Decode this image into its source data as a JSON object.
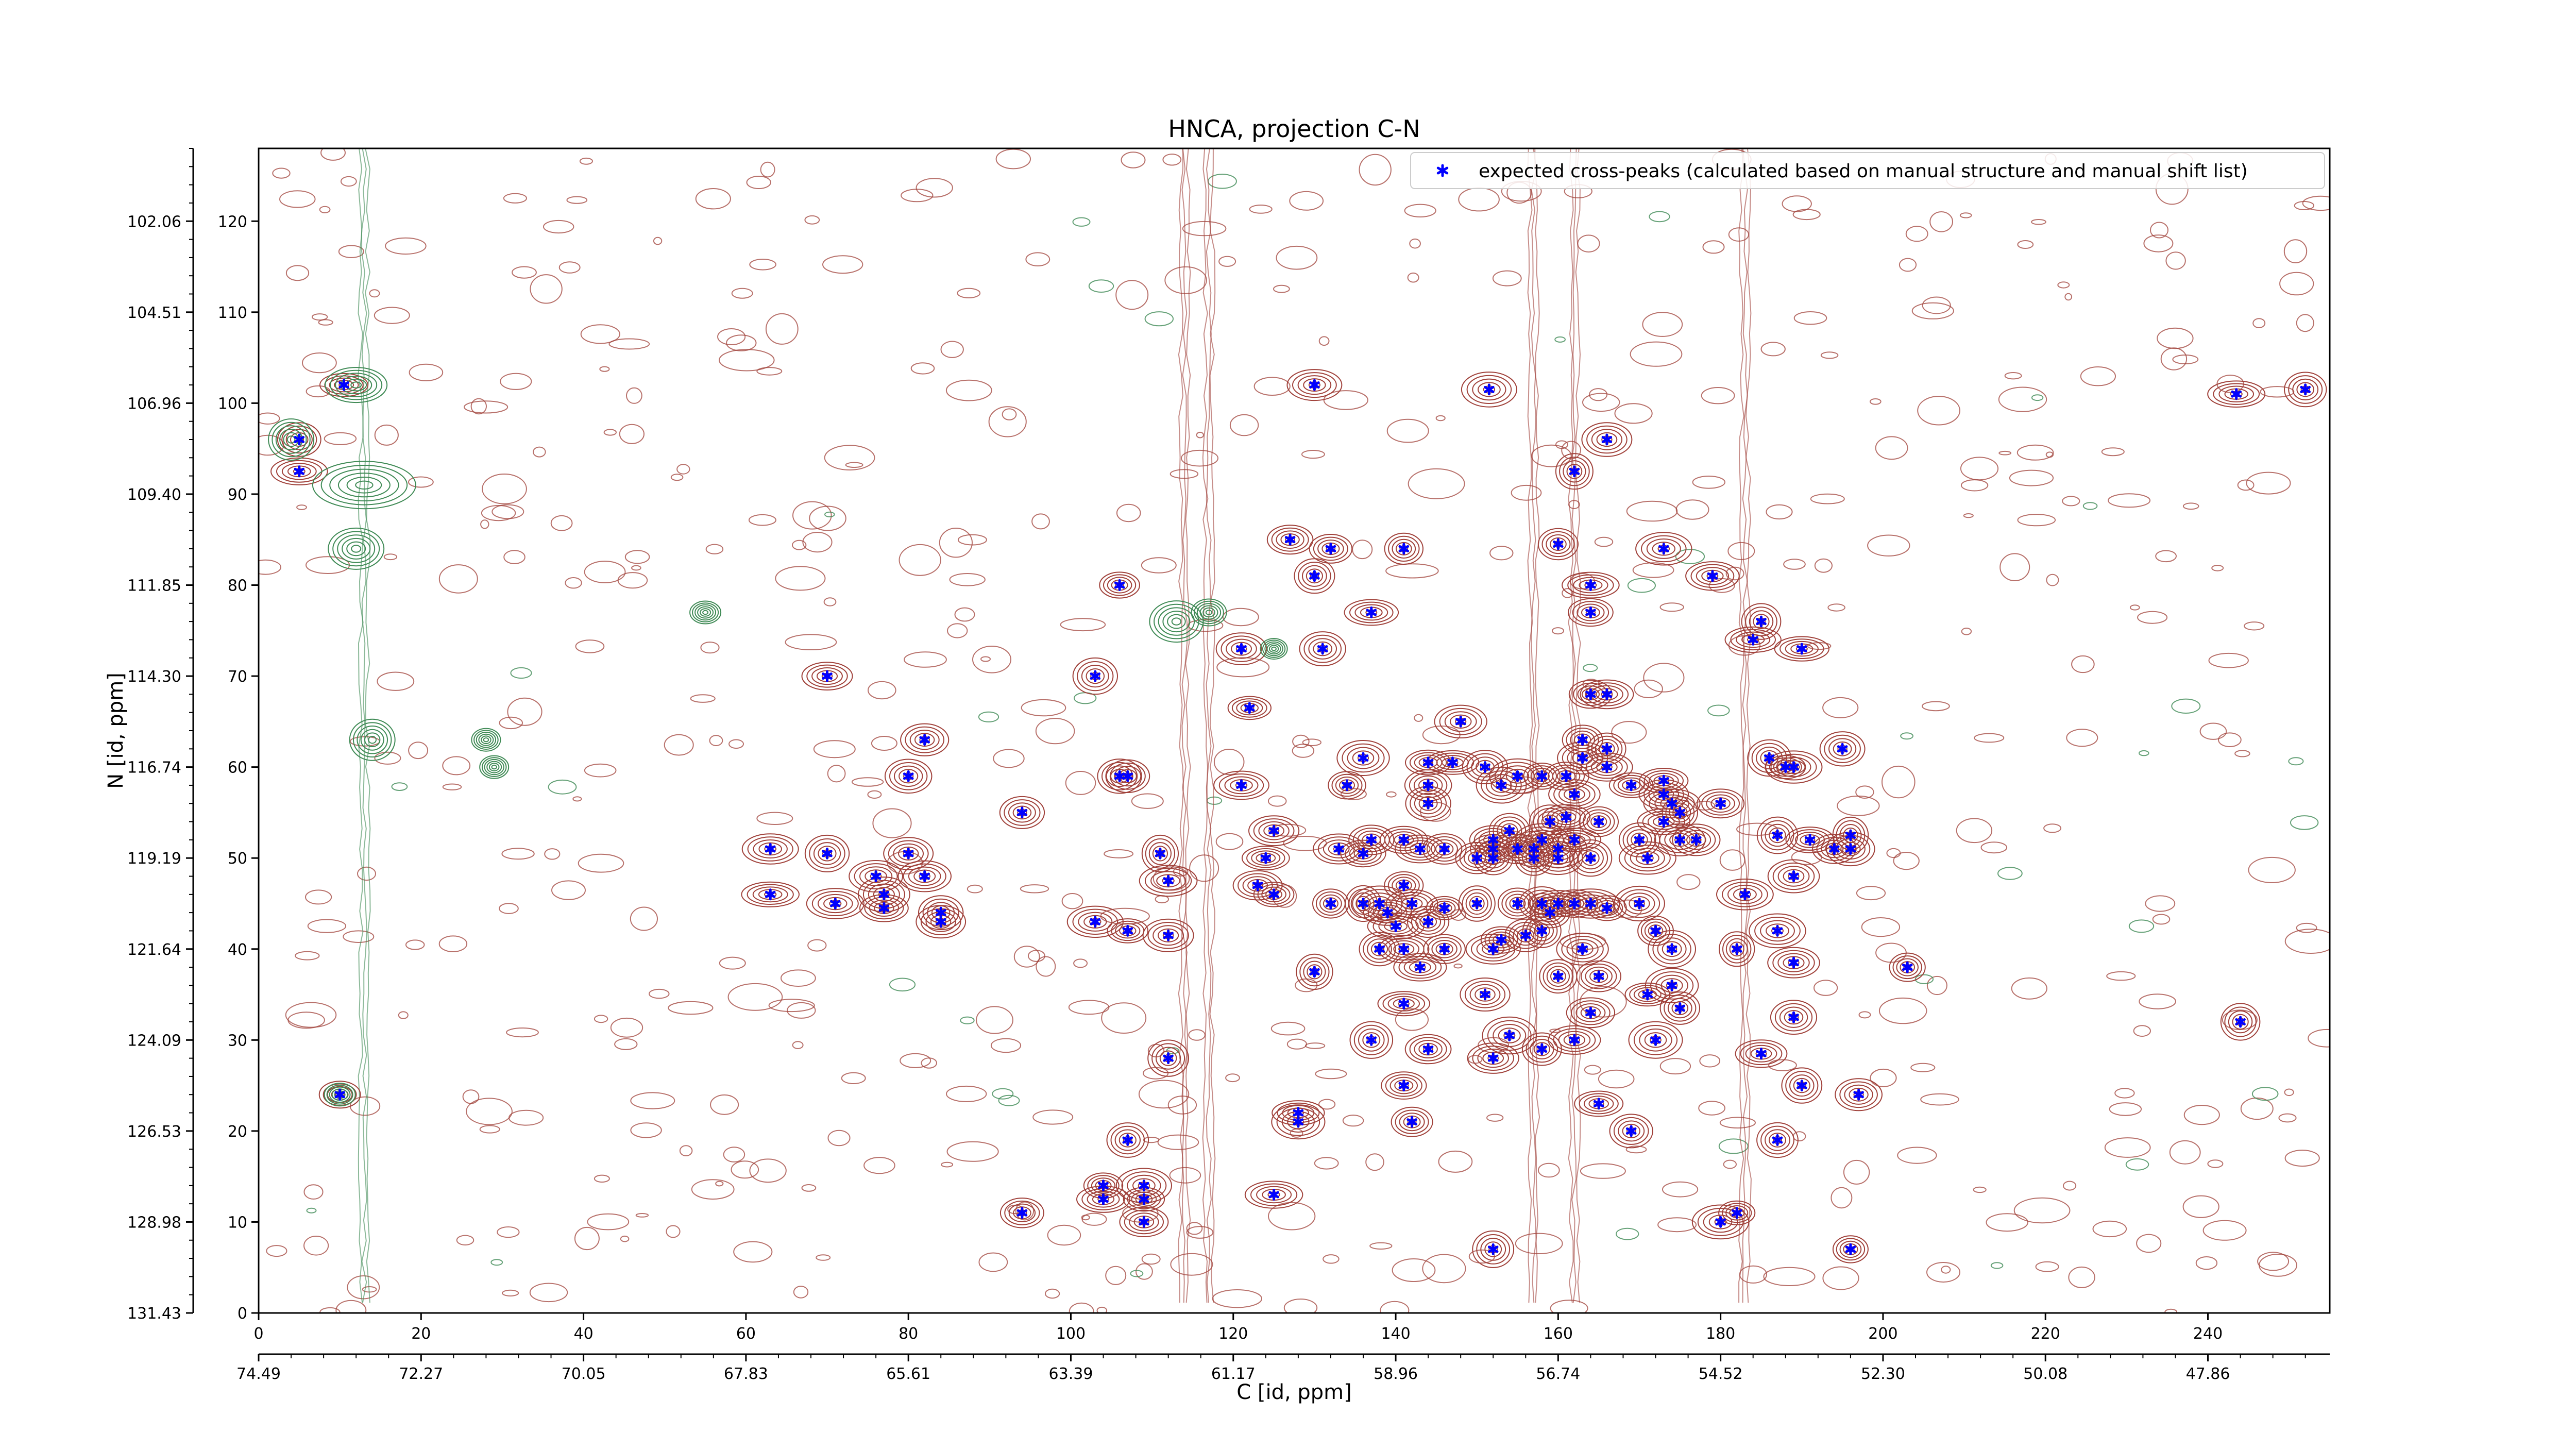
{
  "chart_data": {
    "type": "scatter",
    "title": "HNCA, projection C-N",
    "xlabel": "C [id, ppm]",
    "ylabel": "N [id, ppm]",
    "xlim": [
      0,
      255
    ],
    "ylim": [
      0,
      128
    ],
    "x_ticks": [
      "0",
      "20",
      "40",
      "60",
      "80",
      "100",
      "120",
      "140",
      "160",
      "180",
      "200",
      "220",
      "240"
    ],
    "y_ticks": [
      "0",
      "10",
      "20",
      "30",
      "40",
      "50",
      "60",
      "70",
      "80",
      "90",
      "100",
      "110",
      "120"
    ],
    "x_ppm_ticks": [
      "74.49",
      "72.27",
      "70.05",
      "67.83",
      "65.61",
      "63.39",
      "61.17",
      "58.96",
      "56.74",
      "54.52",
      "52.30",
      "50.08",
      "47.86"
    ],
    "y_ppm_ticks": [
      "131.43",
      "128.98",
      "126.53",
      "124.09",
      "121.64",
      "119.19",
      "116.74",
      "114.30",
      "111.85",
      "109.40",
      "106.96",
      "104.51",
      "102.06"
    ],
    "grid": false,
    "legend": {
      "placement": "top-right",
      "entries": [
        "expected cross-peaks (calculated based on manual structure and manual shift list)"
      ]
    },
    "colors": {
      "marker": "#0000ff",
      "positive_contour": "#a0413a",
      "negative_contour": "#3f8a55"
    },
    "series": [
      {
        "name": "expected cross-peaks (calculated based on manual structure and manual shift list)",
        "points": [
          [
            10.5,
            102
          ],
          [
            5,
            96
          ],
          [
            5,
            92.5
          ],
          [
            10,
            24
          ],
          [
            130,
            102
          ],
          [
            151.5,
            101.5
          ],
          [
            243.5,
            101
          ],
          [
            252,
            101.5
          ],
          [
            166,
            96
          ],
          [
            162,
            92.5
          ],
          [
            127,
            85
          ],
          [
            132,
            84
          ],
          [
            141,
            84
          ],
          [
            160,
            84.5
          ],
          [
            173,
            84
          ],
          [
            106,
            80
          ],
          [
            130,
            81
          ],
          [
            164,
            80
          ],
          [
            179,
            81
          ],
          [
            137,
            77
          ],
          [
            164,
            77
          ],
          [
            185,
            76
          ],
          [
            184,
            74
          ],
          [
            190,
            73
          ],
          [
            121,
            73
          ],
          [
            131,
            73
          ],
          [
            70,
            70
          ],
          [
            103,
            70
          ],
          [
            164,
            68
          ],
          [
            166,
            68
          ],
          [
            122,
            66.5
          ],
          [
            148,
            65
          ],
          [
            82,
            63
          ],
          [
            163,
            63
          ],
          [
            166,
            62
          ],
          [
            195,
            62
          ],
          [
            144,
            60.5
          ],
          [
            147,
            60.5
          ],
          [
            136,
            61
          ],
          [
            151,
            60
          ],
          [
            155,
            59
          ],
          [
            158,
            59
          ],
          [
            161,
            59
          ],
          [
            163,
            61
          ],
          [
            166,
            60
          ],
          [
            186,
            61
          ],
          [
            188,
            60
          ],
          [
            189,
            60
          ],
          [
            80,
            59
          ],
          [
            106,
            59
          ],
          [
            107,
            59
          ],
          [
            169,
            58
          ],
          [
            173,
            58.5
          ],
          [
            121,
            58
          ],
          [
            134,
            58
          ],
          [
            144,
            58
          ],
          [
            153,
            58
          ],
          [
            162,
            57
          ],
          [
            173,
            57
          ],
          [
            174,
            56
          ],
          [
            180,
            56
          ],
          [
            175,
            55
          ],
          [
            94,
            55
          ],
          [
            144,
            56
          ],
          [
            161,
            54.5
          ],
          [
            165,
            54
          ],
          [
            173,
            54
          ],
          [
            159,
            54
          ],
          [
            125,
            53
          ],
          [
            154,
            53
          ],
          [
            137,
            52
          ],
          [
            141,
            52
          ],
          [
            152,
            52
          ],
          [
            158,
            52
          ],
          [
            162,
            52
          ],
          [
            170,
            52
          ],
          [
            175,
            52
          ],
          [
            177,
            52
          ],
          [
            187,
            52.5
          ],
          [
            191,
            52
          ],
          [
            196,
            52.5
          ],
          [
            133,
            51
          ],
          [
            136,
            50.5
          ],
          [
            143,
            51
          ],
          [
            146,
            51
          ],
          [
            152,
            51
          ],
          [
            155,
            51
          ],
          [
            157,
            51
          ],
          [
            160,
            51
          ],
          [
            63,
            51
          ],
          [
            70,
            50.5
          ],
          [
            80,
            50.5
          ],
          [
            111,
            50.5
          ],
          [
            124,
            50
          ],
          [
            150,
            50
          ],
          [
            152,
            50
          ],
          [
            157,
            50
          ],
          [
            160,
            50
          ],
          [
            164,
            50
          ],
          [
            171,
            50
          ],
          [
            194,
            51
          ],
          [
            196,
            51
          ],
          [
            76,
            48
          ],
          [
            82,
            48
          ],
          [
            112,
            47.5
          ],
          [
            141,
            47
          ],
          [
            189,
            48
          ],
          [
            63,
            46
          ],
          [
            123,
            47
          ],
          [
            125,
            46
          ],
          [
            77,
            46
          ],
          [
            71,
            45
          ],
          [
            136,
            45
          ],
          [
            138,
            45
          ],
          [
            142,
            45
          ],
          [
            146,
            44.5
          ],
          [
            150,
            45
          ],
          [
            155,
            45
          ],
          [
            158,
            45
          ],
          [
            160,
            45
          ],
          [
            162,
            45
          ],
          [
            164,
            45
          ],
          [
            166,
            44.5
          ],
          [
            170,
            45
          ],
          [
            183,
            46
          ],
          [
            77,
            44.5
          ],
          [
            84,
            44
          ],
          [
            84,
            43
          ],
          [
            132,
            45
          ],
          [
            139,
            44
          ],
          [
            140,
            42.5
          ],
          [
            144,
            43
          ],
          [
            158,
            42
          ],
          [
            159,
            44
          ],
          [
            103,
            43
          ],
          [
            107,
            42
          ],
          [
            112,
            41.5
          ],
          [
            153,
            41
          ],
          [
            156,
            41.5
          ],
          [
            172,
            42
          ],
          [
            187,
            42
          ],
          [
            138,
            40
          ],
          [
            141,
            40
          ],
          [
            146,
            40
          ],
          [
            152,
            40
          ],
          [
            163,
            40
          ],
          [
            174,
            40
          ],
          [
            182,
            40
          ],
          [
            189,
            38.5
          ],
          [
            203,
            38
          ],
          [
            130,
            37.5
          ],
          [
            143,
            38
          ],
          [
            160,
            37
          ],
          [
            165,
            37
          ],
          [
            174,
            36
          ],
          [
            151,
            35
          ],
          [
            171,
            35
          ],
          [
            141,
            34
          ],
          [
            175,
            33.5
          ],
          [
            189,
            32.5
          ],
          [
            164,
            33
          ],
          [
            244,
            32
          ],
          [
            154,
            30.5
          ],
          [
            137,
            30
          ],
          [
            144,
            29
          ],
          [
            158,
            29
          ],
          [
            162,
            30
          ],
          [
            172,
            30
          ],
          [
            112,
            28
          ],
          [
            152,
            28
          ],
          [
            185,
            28.5
          ],
          [
            141,
            25
          ],
          [
            190,
            25
          ],
          [
            197,
            24
          ],
          [
            165,
            23
          ],
          [
            128,
            22
          ],
          [
            128,
            21
          ],
          [
            142,
            21
          ],
          [
            169,
            20
          ],
          [
            187,
            19
          ],
          [
            107,
            19
          ],
          [
            125,
            13
          ],
          [
            104,
            14
          ],
          [
            109,
            14
          ],
          [
            104,
            12.5
          ],
          [
            109,
            12.5
          ],
          [
            94,
            11
          ],
          [
            182,
            11
          ],
          [
            109,
            10
          ],
          [
            180,
            10
          ],
          [
            152,
            7
          ],
          [
            196,
            7
          ]
        ]
      }
    ]
  }
}
